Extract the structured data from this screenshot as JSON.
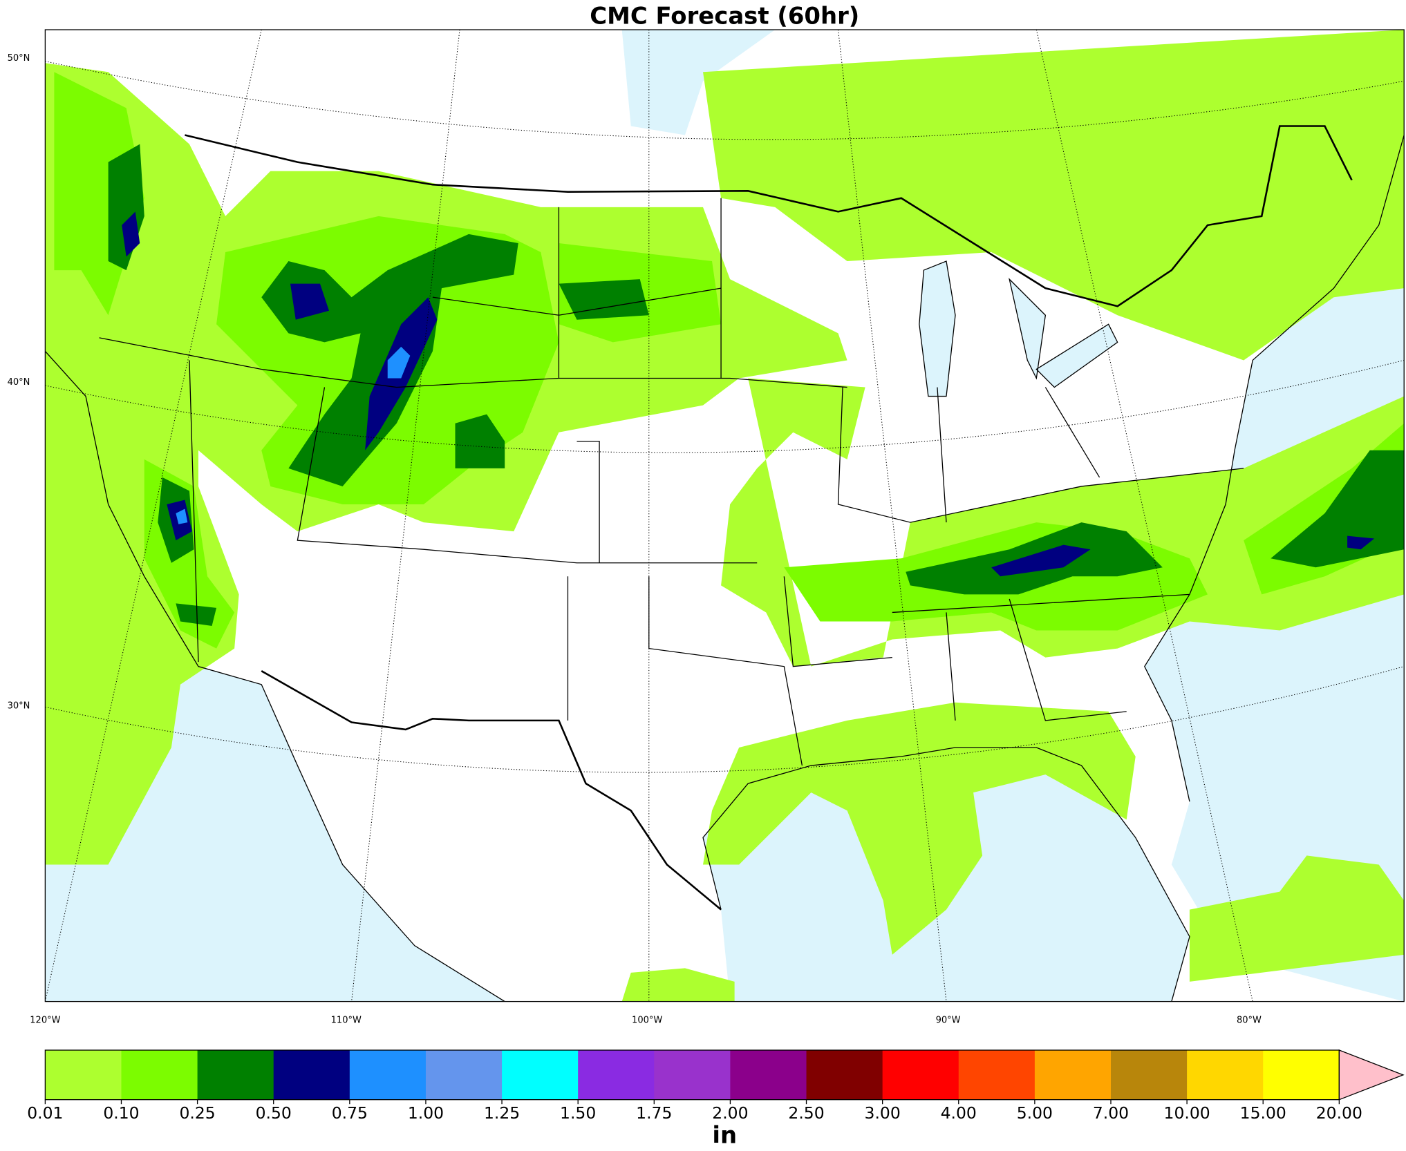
{
  "title": "CMC Forecast (60hr)",
  "lat_labels": [
    {
      "value": 50,
      "label": "50°N"
    },
    {
      "value": 40,
      "label": "40°N"
    },
    {
      "value": 30,
      "label": "30°N"
    }
  ],
  "lon_labels": [
    {
      "value": -120,
      "label": "120°W"
    },
    {
      "value": -110,
      "label": "110°W"
    },
    {
      "value": -100,
      "label": "100°W"
    },
    {
      "value": -90,
      "label": "90°W"
    },
    {
      "value": -80,
      "label": "80°W"
    }
  ],
  "colorbar": {
    "levels": [
      0.01,
      {
        "value": 0.1,
        "label": "0.10"
      },
      0.25,
      {
        "value": 0.5,
        "label": "0.50"
      },
      0.75,
      {
        "value": 1,
        "label": "1.00"
      },
      1.25,
      {
        "value": 1.5,
        "label": "1.50"
      },
      1.75,
      {
        "value": 2,
        "label": "2.00"
      },
      {
        "value": 2.5,
        "label": "2.50"
      },
      {
        "value": 3,
        "label": "3.00"
      },
      {
        "value": 4,
        "label": "4.00"
      },
      {
        "value": 5,
        "label": "5.00"
      },
      {
        "value": 7,
        "label": "7.00"
      },
      {
        "value": 10,
        "label": "10.00"
      },
      {
        "value": 15,
        "label": "15.00"
      },
      {
        "value": 20,
        "label": "20.00"
      }
    ],
    "colors": [
      "#adff2f",
      "#7cfc00",
      "#008000",
      "#000080",
      "#1e90ff",
      "#6495ed",
      "#00ffff",
      "#8a2be2",
      "#9932cc",
      "#8b008b",
      "#800000",
      "#ff0000",
      "#ff4500",
      "#ffa500",
      "#b8860b",
      "#ffd700",
      "#ffff00"
    ],
    "extend_color": "#ffc0cb",
    "unit": "in"
  }
}
